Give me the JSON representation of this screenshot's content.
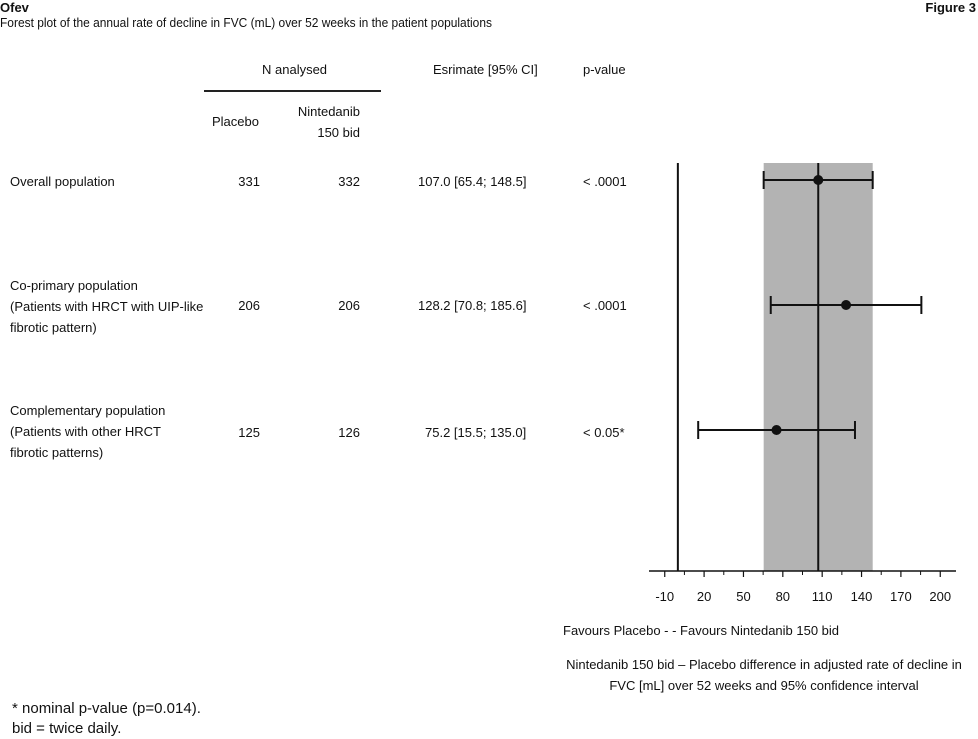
{
  "header": {
    "brand": "Ofev",
    "figure_label": "Figure 3",
    "title": "Forest plot of the annual rate of decline in FVC (mL) over 52 weeks in the patient populations"
  },
  "table": {
    "n_analysed_label": "N analysed",
    "placebo_label": "Placebo",
    "nintedanib_label_line1": "Nintedanib",
    "nintedanib_label_line2": "150 bid",
    "estimate_label": "Esrimate [95% CI]",
    "pvalue_label": "p-value",
    "rows": [
      {
        "label_lines": [
          "Overall population"
        ],
        "placebo_n": "331",
        "nintedanib_n": "332",
        "estimate_text": "107.0 [65.4; 148.5]",
        "p_value": "< .0001"
      },
      {
        "label_lines": [
          "Co-primary population",
          "(Patients with HRCT with UIP-like",
          "fibrotic pattern)"
        ],
        "placebo_n": "206",
        "nintedanib_n": "206",
        "estimate_text": "128.2 [70.8; 185.6]",
        "p_value": "< .0001"
      },
      {
        "label_lines": [
          "Complementary population",
          "(Patients with other HRCT",
          "fibrotic patterns)"
        ],
        "placebo_n": "125",
        "nintedanib_n": "126",
        "estimate_text": "75.2 [15.5; 135.0]",
        "p_value": "< 0.05*"
      }
    ]
  },
  "chart_data": {
    "type": "forest",
    "x_ticks": [
      -10,
      20,
      50,
      80,
      110,
      140,
      170,
      200
    ],
    "xlim": [
      -22,
      212
    ],
    "reference_line": 0,
    "overall_estimate_line": 107.0,
    "shaded_band": [
      65.4,
      148.5
    ],
    "shade_color": "#b3b3b3",
    "points": [
      {
        "estimate": 107.0,
        "lower": 65.4,
        "upper": 148.5
      },
      {
        "estimate": 128.2,
        "lower": 70.8,
        "upper": 185.6
      },
      {
        "estimate": 75.2,
        "lower": 15.5,
        "upper": 135.0
      }
    ],
    "direction_label": "Favours Placebo - - Favours Nintedanib 150 bid",
    "xlabel_line1": "Nintedanib 150 bid – Placebo difference in adjusted rate of decline in",
    "xlabel_line2": "FVC [mL] over 52 weeks and 95% confidence interval"
  },
  "footnotes": {
    "line1": "* nominal p-value (p=0.014).",
    "line2": "bid = twice daily."
  }
}
